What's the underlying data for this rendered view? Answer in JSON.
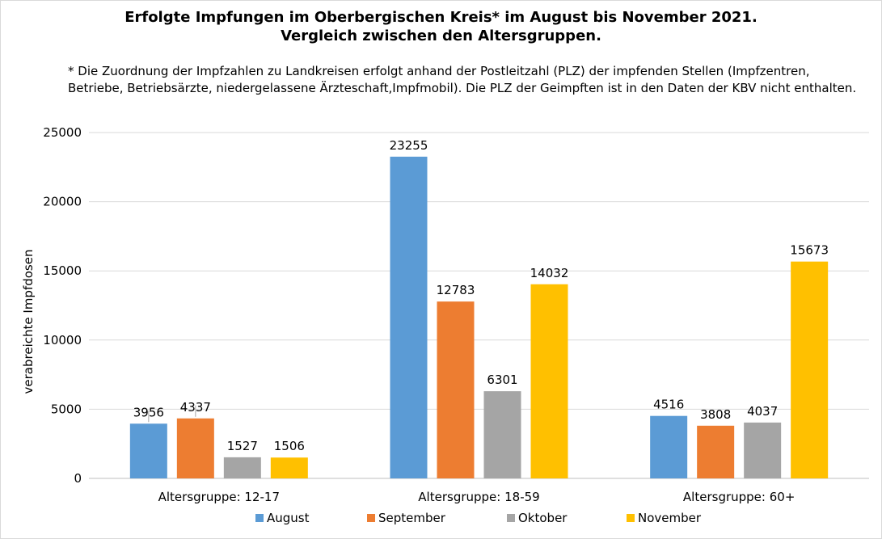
{
  "chart_data": {
    "type": "bar",
    "title_line1": "Erfolgte Impfungen im Oberbergischen Kreis* im August bis November 2021.",
    "title_line2": "Vergleich zwischen den Altersgruppen.",
    "footnote": "* Die Zuordnung der Impfzahlen zu Landkreisen erfolgt anhand der Postleitzahl (PLZ) der impfenden Stellen (Impfzentren, Betriebe, Betriebsärzte, niedergelassene Ärzteschaft,Impfmobil). Die PLZ der Geimpften ist in den Daten der KBV nicht enthalten.",
    "ylabel": "verabreichte Impfdosen",
    "xlabel": "",
    "ylim": [
      0,
      25000
    ],
    "yticks": [
      0,
      5000,
      10000,
      15000,
      20000,
      25000
    ],
    "grid": true,
    "legend_position": "bottom",
    "categories": [
      "Altersgruppe: 12-17",
      "Altersgruppe: 18-59",
      "Altersgruppe: 60+"
    ],
    "series": [
      {
        "name": "August",
        "color": "#5b9bd5",
        "values": [
          3956,
          23255,
          4516
        ]
      },
      {
        "name": "September",
        "color": "#ed7d31",
        "values": [
          4337,
          12783,
          3808
        ]
      },
      {
        "name": "Oktober",
        "color": "#a5a5a5",
        "values": [
          1527,
          6301,
          4037
        ]
      },
      {
        "name": "November",
        "color": "#ffc000",
        "values": [
          1506,
          14032,
          15673
        ]
      }
    ]
  }
}
